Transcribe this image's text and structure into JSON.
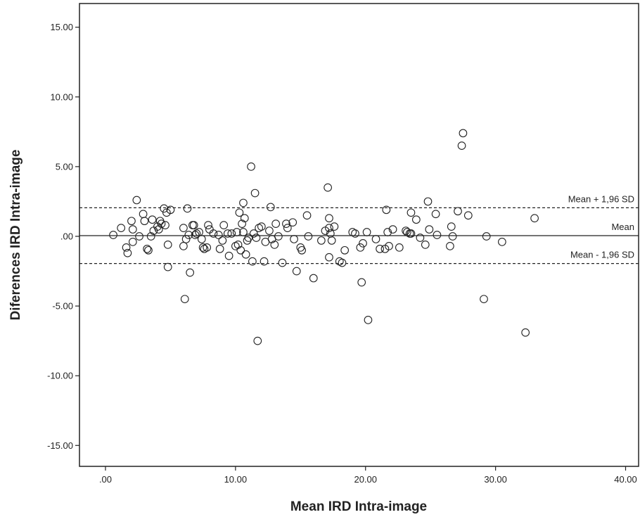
{
  "chart_data": {
    "type": "scatter",
    "title": "",
    "xlabel": "Mean IRD Intra-image",
    "ylabel": "Diferences IRD Intra-image",
    "xlim": [
      -2,
      41
    ],
    "ylim": [
      -16.5,
      16.7
    ],
    "x_ticks": [
      0,
      10,
      20,
      30,
      40
    ],
    "x_tick_labels": [
      ".00",
      "10.00",
      "20.00",
      "30.00",
      "40.00"
    ],
    "y_ticks": [
      15,
      10,
      5,
      0,
      -5,
      -10,
      -15
    ],
    "y_tick_labels": [
      "15.00",
      "10.00",
      "5.00",
      ".00",
      "-5.00",
      "-10.00",
      "-15.00"
    ],
    "grid": false,
    "marker": "open-circle",
    "reference_lines": [
      {
        "label": "Mean + 1,96 SD",
        "value": 2.05,
        "style": "dashed"
      },
      {
        "label": "Mean",
        "value": 0.05,
        "style": "solid"
      },
      {
        "label": "Mean - 1,96 SD",
        "value": -1.95,
        "style": "dashed"
      }
    ],
    "points": [
      [
        0.6,
        0.1
      ],
      [
        1.2,
        0.6
      ],
      [
        1.6,
        -0.8
      ],
      [
        1.7,
        -1.2
      ],
      [
        2.0,
        1.1
      ],
      [
        2.1,
        0.5
      ],
      [
        2.1,
        -0.4
      ],
      [
        2.4,
        2.6
      ],
      [
        2.6,
        0.0
      ],
      [
        2.9,
        1.6
      ],
      [
        3.0,
        1.1
      ],
      [
        3.2,
        -0.9
      ],
      [
        3.3,
        -1.0
      ],
      [
        3.5,
        0.0
      ],
      [
        3.6,
        1.2
      ],
      [
        3.7,
        0.4
      ],
      [
        4.0,
        0.7
      ],
      [
        4.1,
        0.5
      ],
      [
        4.2,
        1.1
      ],
      [
        4.3,
        0.9
      ],
      [
        4.5,
        2.0
      ],
      [
        4.6,
        0.8
      ],
      [
        4.7,
        1.7
      ],
      [
        4.8,
        -0.6
      ],
      [
        4.8,
        -2.2
      ],
      [
        5.0,
        1.9
      ],
      [
        6.0,
        0.6
      ],
      [
        6.0,
        -0.7
      ],
      [
        6.1,
        -4.5
      ],
      [
        6.2,
        -0.2
      ],
      [
        6.3,
        2.0
      ],
      [
        6.4,
        0.1
      ],
      [
        6.5,
        -2.6
      ],
      [
        6.7,
        0.8
      ],
      [
        6.8,
        0.8
      ],
      [
        6.9,
        0.1
      ],
      [
        7.0,
        0.2
      ],
      [
        7.2,
        0.3
      ],
      [
        7.4,
        -0.2
      ],
      [
        7.5,
        -0.8
      ],
      [
        7.6,
        -0.9
      ],
      [
        7.8,
        -0.8
      ],
      [
        7.9,
        0.8
      ],
      [
        8.0,
        0.5
      ],
      [
        8.3,
        0.2
      ],
      [
        8.7,
        0.1
      ],
      [
        8.8,
        -0.9
      ],
      [
        9.0,
        -0.3
      ],
      [
        9.1,
        0.8
      ],
      [
        9.4,
        0.2
      ],
      [
        9.5,
        -1.4
      ],
      [
        9.7,
        0.2
      ],
      [
        10.0,
        -0.7
      ],
      [
        10.1,
        0.3
      ],
      [
        10.2,
        -0.6
      ],
      [
        10.3,
        1.7
      ],
      [
        10.4,
        -1.0
      ],
      [
        10.5,
        0.9
      ],
      [
        10.6,
        2.4
      ],
      [
        10.6,
        0.3
      ],
      [
        10.7,
        1.3
      ],
      [
        10.8,
        -1.3
      ],
      [
        10.9,
        -0.3
      ],
      [
        11.0,
        -0.1
      ],
      [
        11.2,
        5.0
      ],
      [
        11.3,
        -1.8
      ],
      [
        11.4,
        0.2
      ],
      [
        11.5,
        3.1
      ],
      [
        11.6,
        -0.1
      ],
      [
        11.7,
        -7.5
      ],
      [
        11.8,
        0.6
      ],
      [
        12.0,
        0.7
      ],
      [
        12.2,
        -1.8
      ],
      [
        12.3,
        -0.4
      ],
      [
        12.6,
        0.4
      ],
      [
        12.7,
        2.1
      ],
      [
        12.8,
        -0.2
      ],
      [
        13.0,
        -0.6
      ],
      [
        13.1,
        0.9
      ],
      [
        13.3,
        0.0
      ],
      [
        13.6,
        -1.9
      ],
      [
        13.9,
        0.9
      ],
      [
        14.0,
        0.6
      ],
      [
        14.4,
        1.0
      ],
      [
        14.5,
        -0.2
      ],
      [
        14.7,
        -2.5
      ],
      [
        15.0,
        -0.8
      ],
      [
        15.1,
        -1.0
      ],
      [
        15.5,
        1.5
      ],
      [
        15.6,
        0.0
      ],
      [
        16.0,
        -3.0
      ],
      [
        16.6,
        -0.3
      ],
      [
        16.9,
        0.4
      ],
      [
        17.1,
        3.5
      ],
      [
        17.2,
        0.6
      ],
      [
        17.2,
        1.3
      ],
      [
        17.2,
        -1.5
      ],
      [
        17.3,
        0.2
      ],
      [
        17.4,
        -0.3
      ],
      [
        17.6,
        0.7
      ],
      [
        18.0,
        -1.8
      ],
      [
        18.2,
        -1.9
      ],
      [
        18.4,
        -1.0
      ],
      [
        19.0,
        0.3
      ],
      [
        19.2,
        0.2
      ],
      [
        19.6,
        -0.8
      ],
      [
        19.7,
        -3.3
      ],
      [
        19.8,
        -0.5
      ],
      [
        20.1,
        0.3
      ],
      [
        20.2,
        -6.0
      ],
      [
        20.8,
        -0.2
      ],
      [
        21.1,
        -0.9
      ],
      [
        21.5,
        -0.9
      ],
      [
        21.6,
        1.9
      ],
      [
        21.7,
        0.3
      ],
      [
        21.8,
        -0.7
      ],
      [
        22.1,
        0.5
      ],
      [
        22.6,
        -0.8
      ],
      [
        23.1,
        0.4
      ],
      [
        23.2,
        0.3
      ],
      [
        23.4,
        0.2
      ],
      [
        23.5,
        1.7
      ],
      [
        23.5,
        0.2
      ],
      [
        23.9,
        1.2
      ],
      [
        24.2,
        -0.1
      ],
      [
        24.6,
        -0.6
      ],
      [
        24.8,
        2.5
      ],
      [
        24.9,
        0.5
      ],
      [
        25.4,
        1.6
      ],
      [
        25.5,
        0.1
      ],
      [
        26.5,
        -0.7
      ],
      [
        26.6,
        0.7
      ],
      [
        26.7,
        0.0
      ],
      [
        27.1,
        1.8
      ],
      [
        27.4,
        6.5
      ],
      [
        27.5,
        7.4
      ],
      [
        27.9,
        1.5
      ],
      [
        29.1,
        -4.5
      ],
      [
        29.3,
        0.0
      ],
      [
        30.5,
        -0.4
      ],
      [
        32.3,
        -6.9
      ],
      [
        33.0,
        1.3
      ]
    ]
  }
}
